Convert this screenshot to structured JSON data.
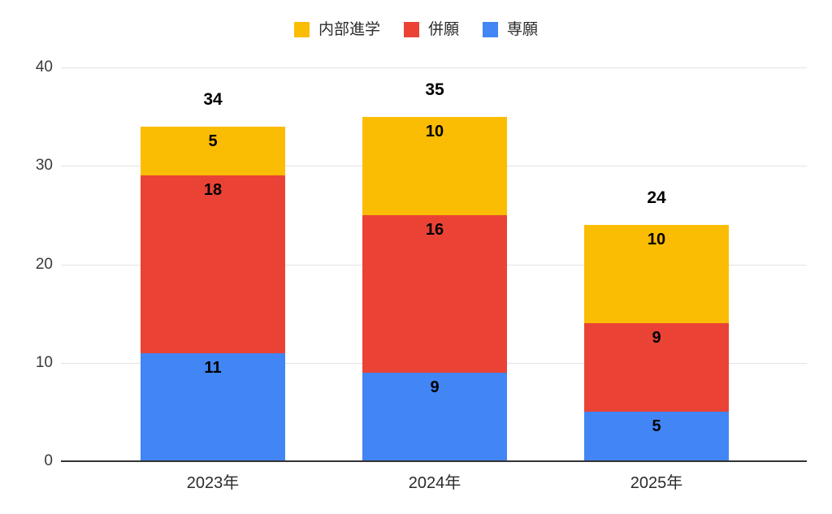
{
  "chart_data": {
    "type": "bar",
    "stacked": true,
    "categories": [
      "2023年",
      "2024年",
      "2025年"
    ],
    "series": [
      {
        "name": "専願",
        "color": "#4285F4",
        "values": [
          11,
          9,
          5
        ]
      },
      {
        "name": "併願",
        "color": "#EA4335",
        "values": [
          18,
          16,
          9
        ]
      },
      {
        "name": "内部進学",
        "color": "#FBBC04",
        "values": [
          5,
          10,
          10
        ]
      }
    ],
    "totals": [
      34,
      35,
      24
    ],
    "ylim": [
      0,
      40
    ],
    "yticks": [
      0,
      10,
      20,
      30,
      40
    ],
    "grid": true,
    "legend": {
      "position": "top",
      "items": [
        {
          "label": "内部進学",
          "color": "#FBBC04"
        },
        {
          "label": "併願",
          "color": "#EA4335"
        },
        {
          "label": "専願",
          "color": "#4285F4"
        }
      ]
    },
    "colors": {
      "gridline": "#e3e3e3",
      "baseline": "#333333",
      "value_label": "#000000",
      "axis_text": "#2b2b2b"
    }
  }
}
